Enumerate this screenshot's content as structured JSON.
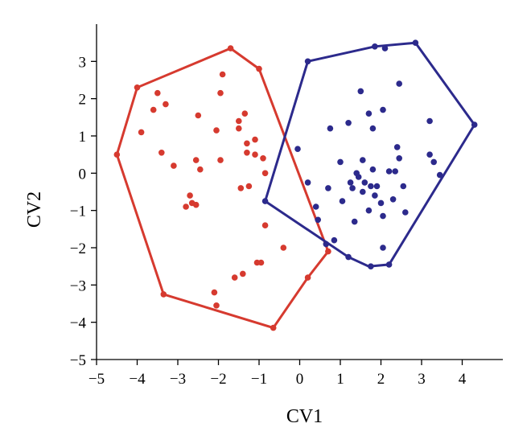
{
  "chart_data": {
    "type": "scatter",
    "title": "",
    "xlabel": "CV1",
    "ylabel": "CV2",
    "xlim": [
      -5,
      5
    ],
    "ylim": [
      -5,
      4
    ],
    "xticks": [
      -5,
      -4,
      -3,
      -2,
      -1,
      0,
      1,
      2,
      3,
      4
    ],
    "yticks": [
      -5,
      -4,
      -3,
      -2,
      -1,
      0,
      1,
      2,
      3
    ],
    "xtick_labels": [
      "−5",
      "−4",
      "−3",
      "−2",
      "−1",
      "0",
      "1",
      "2",
      "3",
      "4"
    ],
    "ytick_labels": [
      "−5",
      "−4",
      "−3",
      "−2",
      "−1",
      "0",
      "1",
      "2",
      "3"
    ],
    "grid": false,
    "legend": "none",
    "series": [
      {
        "color": "#d63a2f",
        "points": [
          [
            -4.5,
            0.5
          ],
          [
            -4.0,
            2.3
          ],
          [
            -3.9,
            1.1
          ],
          [
            -3.5,
            2.15
          ],
          [
            -3.6,
            1.7
          ],
          [
            -3.3,
            1.85
          ],
          [
            -3.4,
            0.55
          ],
          [
            -3.1,
            0.2
          ],
          [
            -3.35,
            -3.25
          ],
          [
            -2.8,
            -0.9
          ],
          [
            -2.7,
            -0.6
          ],
          [
            -2.65,
            -0.8
          ],
          [
            -2.55,
            -0.85
          ],
          [
            -2.5,
            1.55
          ],
          [
            -2.55,
            0.35
          ],
          [
            -2.45,
            0.1
          ],
          [
            -2.1,
            -3.2
          ],
          [
            -2.05,
            -3.55
          ],
          [
            -2.05,
            1.15
          ],
          [
            -1.95,
            2.15
          ],
          [
            -1.9,
            2.65
          ],
          [
            -1.95,
            0.35
          ],
          [
            -1.7,
            3.35
          ],
          [
            -1.6,
            -2.8
          ],
          [
            -1.5,
            1.2
          ],
          [
            -1.5,
            1.4
          ],
          [
            -1.45,
            -0.4
          ],
          [
            -1.4,
            -2.7
          ],
          [
            -1.35,
            1.6
          ],
          [
            -1.3,
            0.8
          ],
          [
            -1.3,
            0.55
          ],
          [
            -1.25,
            -0.35
          ],
          [
            -1.1,
            0.9
          ],
          [
            -1.1,
            0.5
          ],
          [
            -1.05,
            -2.4
          ],
          [
            -1.0,
            2.8
          ],
          [
            -0.95,
            -2.4
          ],
          [
            -0.9,
            0.4
          ],
          [
            -0.85,
            0.0
          ],
          [
            -0.85,
            -1.4
          ],
          [
            -0.65,
            -4.15
          ],
          [
            -0.4,
            -2.0
          ],
          [
            0.2,
            -2.8
          ],
          [
            0.7,
            -2.1
          ]
        ],
        "hull": [
          [
            -4.5,
            0.5
          ],
          [
            -4.0,
            2.3
          ],
          [
            -1.7,
            3.35
          ],
          [
            -1.0,
            2.8
          ],
          [
            0.7,
            -2.1
          ],
          [
            0.2,
            -2.8
          ],
          [
            -0.65,
            -4.15
          ],
          [
            -3.35,
            -3.25
          ]
        ]
      },
      {
        "color": "#2c2a8c",
        "points": [
          [
            -0.85,
            -0.75
          ],
          [
            -0.05,
            0.65
          ],
          [
            0.2,
            3.0
          ],
          [
            0.2,
            -0.25
          ],
          [
            0.4,
            -0.9
          ],
          [
            0.45,
            -1.25
          ],
          [
            0.65,
            -1.9
          ],
          [
            0.7,
            -0.4
          ],
          [
            0.75,
            1.2
          ],
          [
            0.85,
            -1.8
          ],
          [
            1.0,
            0.3
          ],
          [
            1.05,
            -0.75
          ],
          [
            1.2,
            1.35
          ],
          [
            1.2,
            -2.25
          ],
          [
            1.25,
            -0.25
          ],
          [
            1.3,
            -0.4
          ],
          [
            1.35,
            -1.3
          ],
          [
            1.4,
            0.0
          ],
          [
            1.45,
            -0.1
          ],
          [
            1.5,
            2.2
          ],
          [
            1.55,
            0.35
          ],
          [
            1.55,
            -0.5
          ],
          [
            1.6,
            -0.25
          ],
          [
            1.7,
            1.6
          ],
          [
            1.7,
            -1.0
          ],
          [
            1.75,
            -0.35
          ],
          [
            1.75,
            -2.5
          ],
          [
            1.8,
            0.1
          ],
          [
            1.8,
            1.2
          ],
          [
            1.85,
            -0.6
          ],
          [
            1.85,
            3.4
          ],
          [
            1.9,
            -0.35
          ],
          [
            2.0,
            -0.8
          ],
          [
            2.05,
            -1.15
          ],
          [
            2.05,
            1.7
          ],
          [
            2.05,
            -2.0
          ],
          [
            2.1,
            3.35
          ],
          [
            2.2,
            0.05
          ],
          [
            2.2,
            -2.45
          ],
          [
            2.3,
            -0.7
          ],
          [
            2.35,
            0.05
          ],
          [
            2.4,
            0.7
          ],
          [
            2.45,
            2.4
          ],
          [
            2.45,
            0.4
          ],
          [
            2.55,
            -0.35
          ],
          [
            2.6,
            -1.05
          ],
          [
            2.85,
            3.5
          ],
          [
            3.2,
            1.4
          ],
          [
            3.2,
            0.5
          ],
          [
            3.3,
            0.3
          ],
          [
            3.45,
            -0.05
          ],
          [
            4.3,
            1.3
          ]
        ],
        "hull": [
          [
            0.2,
            3.0
          ],
          [
            1.85,
            3.4
          ],
          [
            2.85,
            3.5
          ],
          [
            4.3,
            1.3
          ],
          [
            2.2,
            -2.45
          ],
          [
            1.7,
            -2.5
          ],
          [
            1.2,
            -2.25
          ],
          [
            -0.85,
            -0.75
          ]
        ]
      }
    ]
  }
}
